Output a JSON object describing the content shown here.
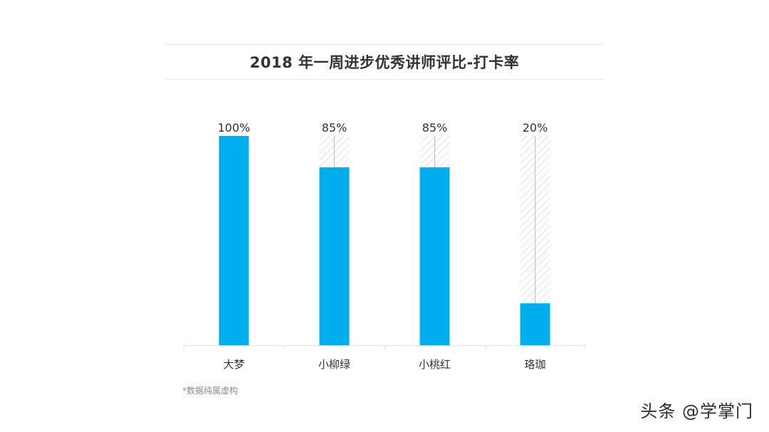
{
  "chart_data": {
    "type": "bar",
    "title": "2018 年一周进步优秀讲师评比-打卡率",
    "categories": [
      "大梦",
      "小柳绿",
      "小桃红",
      "珞珈"
    ],
    "values": [
      100,
      85,
      85,
      20
    ],
    "value_labels": [
      "100%",
      "85%",
      "85%",
      "20%"
    ],
    "ylim": [
      0,
      100
    ],
    "xlabel": "",
    "ylabel": "",
    "grid": false,
    "legend": "none",
    "bar_color": "#00aeef",
    "remainder_style": "hatched"
  },
  "footnote": "*数据纯属虚构",
  "watermark": "头条 @学掌门"
}
